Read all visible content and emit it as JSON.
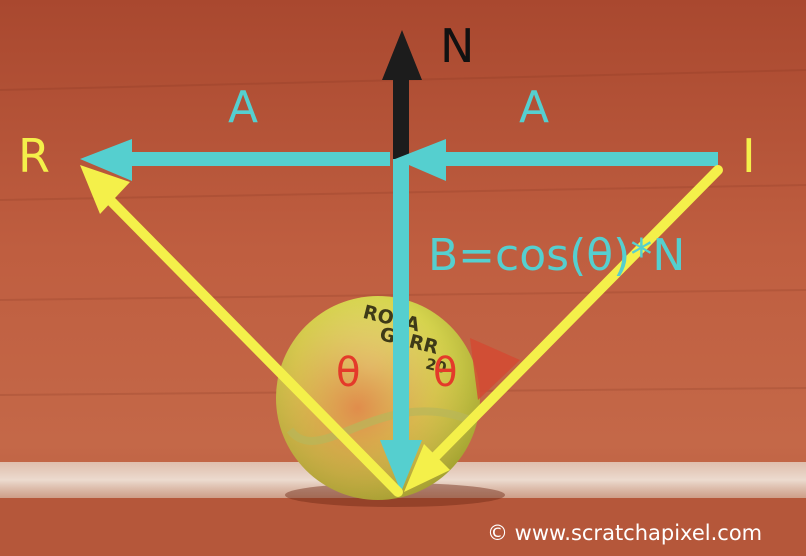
{
  "diagram": {
    "labels": {
      "normal": "N",
      "reflected": "R",
      "incident": "I",
      "tangent_left": "A",
      "tangent_right": "A",
      "projection": "B=cos(θ)*N",
      "angle_left": "θ",
      "angle_right": "θ"
    },
    "ball_print": {
      "line1": "ROLA",
      "line2": "GARR",
      "line3": "20"
    },
    "watermark": "© www.scratchapixel.com",
    "colors": {
      "clay": "#b8583a",
      "clay_dark": "#8f3f28",
      "court_line": "#e9dcd0",
      "ball": "#d9d650",
      "ball_shadow": "#9c9a2c",
      "cyan_vectors": "#55cfcf",
      "yellow_vectors": "#f4f04a",
      "normal_arrow": "#1c1c1c",
      "angle_text": "#e43a2a",
      "label_text": "#f4f04a",
      "watermark_text": "#ffffff"
    }
  }
}
